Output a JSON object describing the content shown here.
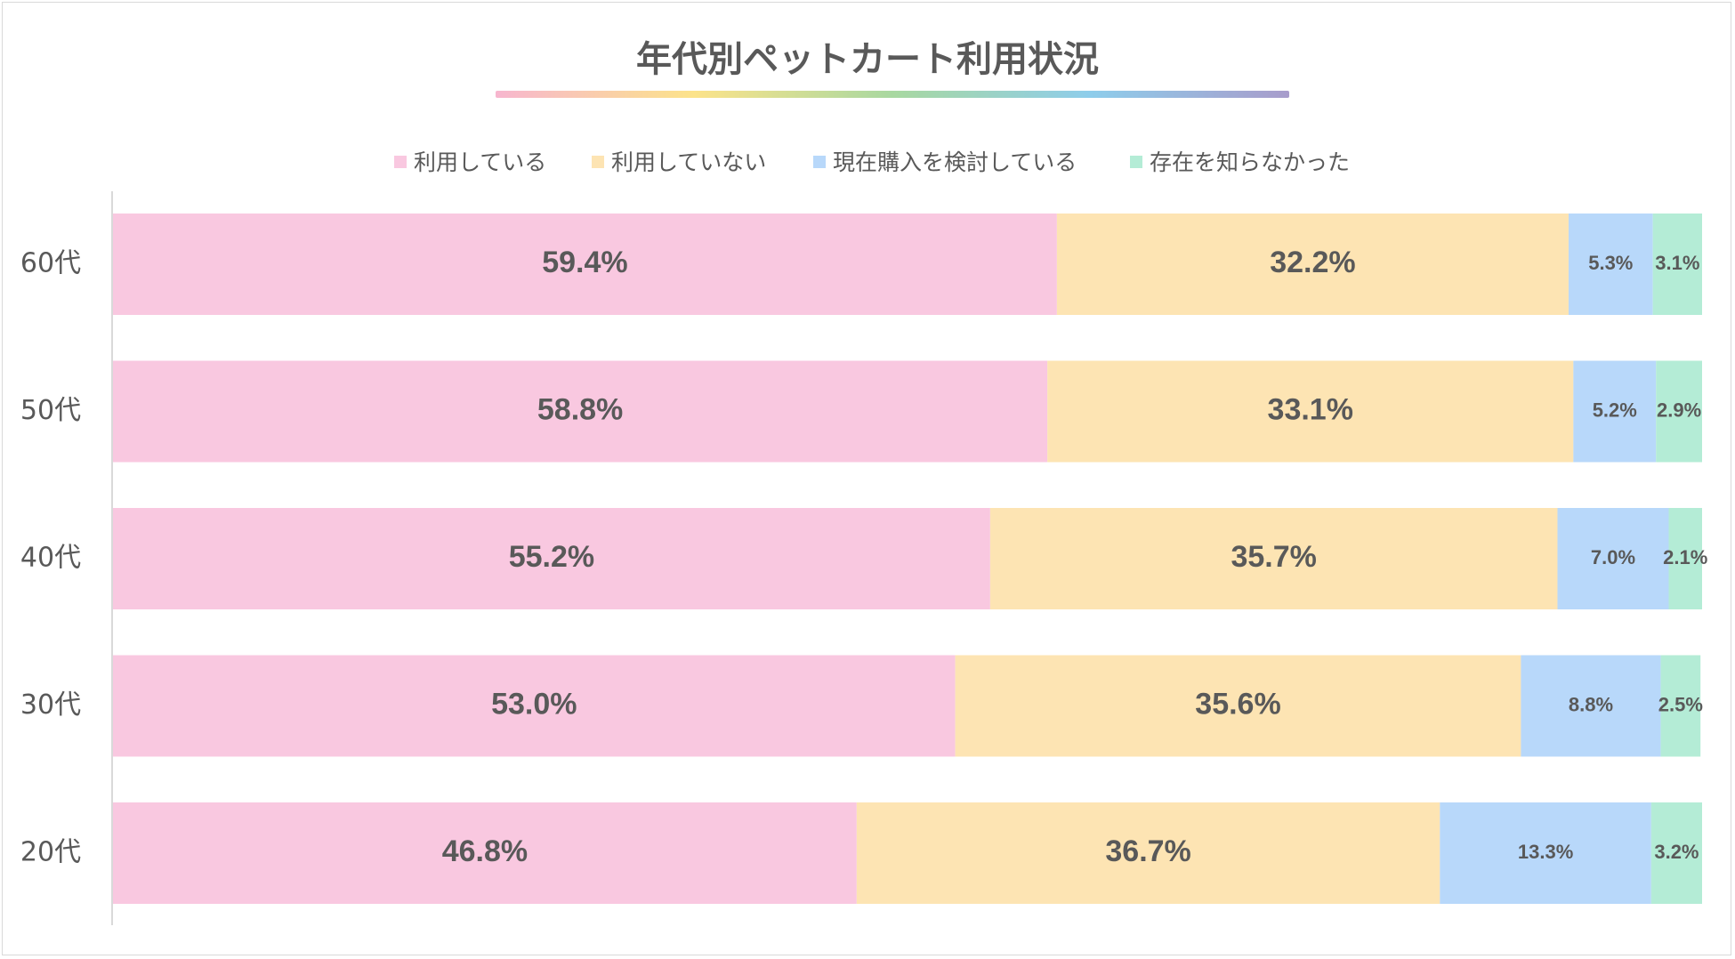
{
  "chart_data": {
    "type": "bar",
    "orientation": "horizontal",
    "stacked": true,
    "title": "年代別ペットカート利用状況",
    "legend_position": "top",
    "grid": false,
    "xlim": [
      0,
      100
    ],
    "categories": [
      "60代",
      "50代",
      "40代",
      "30代",
      "20代"
    ],
    "series": [
      {
        "name": "利用している",
        "color": "#F9C8E0",
        "values": [
          59.4,
          58.8,
          55.2,
          53.0,
          46.8
        ],
        "labels": [
          "59.4%",
          "58.8%",
          "55.2%",
          "53.0%",
          "46.8%"
        ]
      },
      {
        "name": "利用していない",
        "color": "#FDE4B3",
        "values": [
          32.2,
          33.1,
          35.7,
          35.6,
          36.7
        ],
        "labels": [
          "32.2%",
          "33.1%",
          "35.7%",
          "35.6%",
          "36.7%"
        ]
      },
      {
        "name": "現在購入を検討している",
        "color": "#B8D8FA",
        "values": [
          5.3,
          5.2,
          7.0,
          8.8,
          13.3
        ],
        "labels": [
          "5.3%",
          "5.2%",
          "7.0%",
          "8.8%",
          "13.3%"
        ]
      },
      {
        "name": "存在を知らなかった",
        "color": "#B4ECD6",
        "values": [
          3.1,
          2.9,
          2.1,
          2.5,
          3.2
        ],
        "labels": [
          "3.1%",
          "2.9%",
          "2.1%",
          "2.5%",
          "3.2%"
        ]
      }
    ],
    "title_underline_colors": [
      "#F7B6CF",
      "#FCE38A",
      "#A8D8A0",
      "#8ECDEB",
      "#A89CCB"
    ]
  }
}
